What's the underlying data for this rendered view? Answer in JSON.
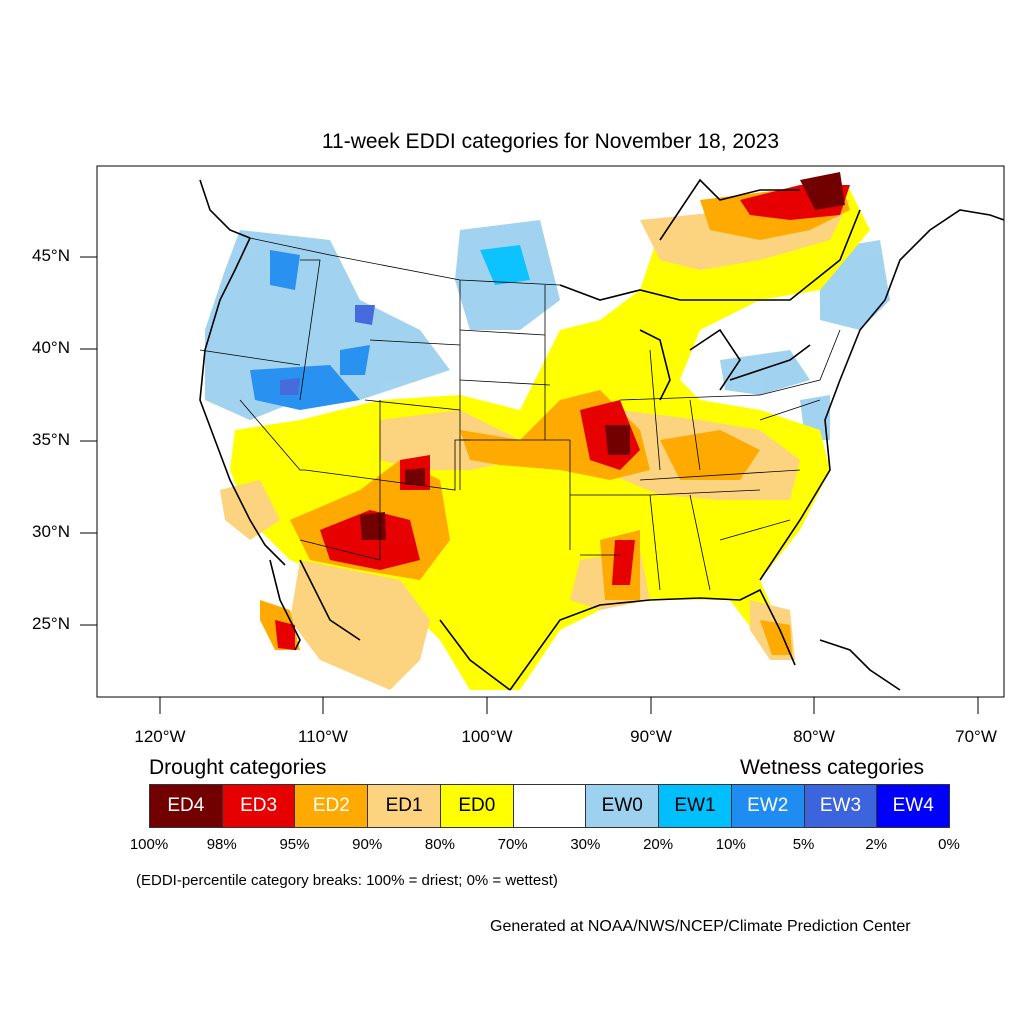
{
  "title": "11-week EDDI categories for November 18, 2023",
  "y_labels": [
    "45°N",
    "40°N",
    "35°N",
    "30°N",
    "25°N"
  ],
  "x_labels": [
    "120°W",
    "110°W",
    "100°W",
    "90°W",
    "80°W",
    "70°W"
  ],
  "drought_title": "Drought categories",
  "wetness_title": "Wetness categories",
  "legend": [
    {
      "label": "ED4",
      "color": "#730000",
      "text_color": "#ffffff"
    },
    {
      "label": "ED3",
      "color": "#e60000",
      "text_color": "#ffffff"
    },
    {
      "label": "ED2",
      "color": "#ffaa00",
      "text_color": "#ffffff"
    },
    {
      "label": "ED1",
      "color": "#fcd37f",
      "text_color": "#000000"
    },
    {
      "label": "ED0",
      "color": "#ffff00",
      "text_color": "#000000"
    },
    {
      "label": "",
      "color": "#ffffff",
      "text_color": "#000000"
    },
    {
      "label": "EW0",
      "color": "#9dd1f0",
      "text_color": "#000000"
    },
    {
      "label": "EW1",
      "color": "#00bfff",
      "text_color": "#000000"
    },
    {
      "label": "EW2",
      "color": "#1e8cf0",
      "text_color": "#ffffff"
    },
    {
      "label": "EW3",
      "color": "#3c64dc",
      "text_color": "#ffffff"
    },
    {
      "label": "EW4",
      "color": "#0000ff",
      "text_color": "#ffffff"
    }
  ],
  "percentiles": [
    "100%",
    "98%",
    "95%",
    "90%",
    "80%",
    "70%",
    "30%",
    "20%",
    "10%",
    "5%",
    "2%",
    "0%"
  ],
  "note": "(EDDI-percentile category breaks: 100% = driest; 0% = wettest)",
  "credit": "Generated at NOAA/NWS/NCEP/Climate Prediction Center"
}
